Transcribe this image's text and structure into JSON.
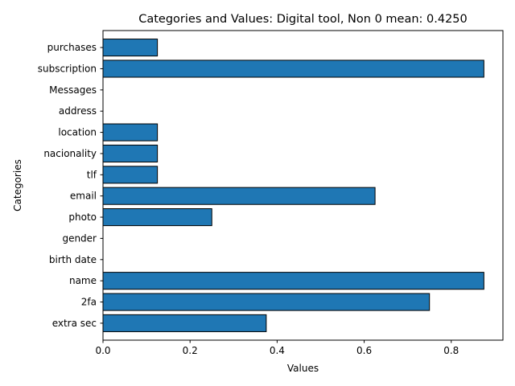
{
  "chart_data": {
    "type": "bar",
    "orientation": "horizontal",
    "title": "Categories and Values: Digital tool, Non 0 mean: 0.4250",
    "xlabel": "Values",
    "ylabel": "Categories",
    "categories": [
      "extra sec",
      "2fa",
      "name",
      "birth date",
      "gender",
      "photo",
      "email",
      "tlf",
      "nacionality",
      "location",
      "address",
      "Messages",
      "subscription",
      "purchases"
    ],
    "values": [
      0.375,
      0.75,
      0.875,
      0,
      0,
      0.25,
      0.625,
      0.125,
      0.125,
      0.125,
      0,
      0,
      0.875,
      0.125
    ],
    "xlim": [
      0,
      0.91875
    ],
    "xticks": [
      0.0,
      0.2,
      0.4,
      0.6,
      0.8
    ],
    "xtick_labels": [
      "0.0",
      "0.2",
      "0.4",
      "0.6",
      "0.8"
    ],
    "grid": false,
    "bar_color": "#1f77b4",
    "edge_color": "#000000"
  }
}
